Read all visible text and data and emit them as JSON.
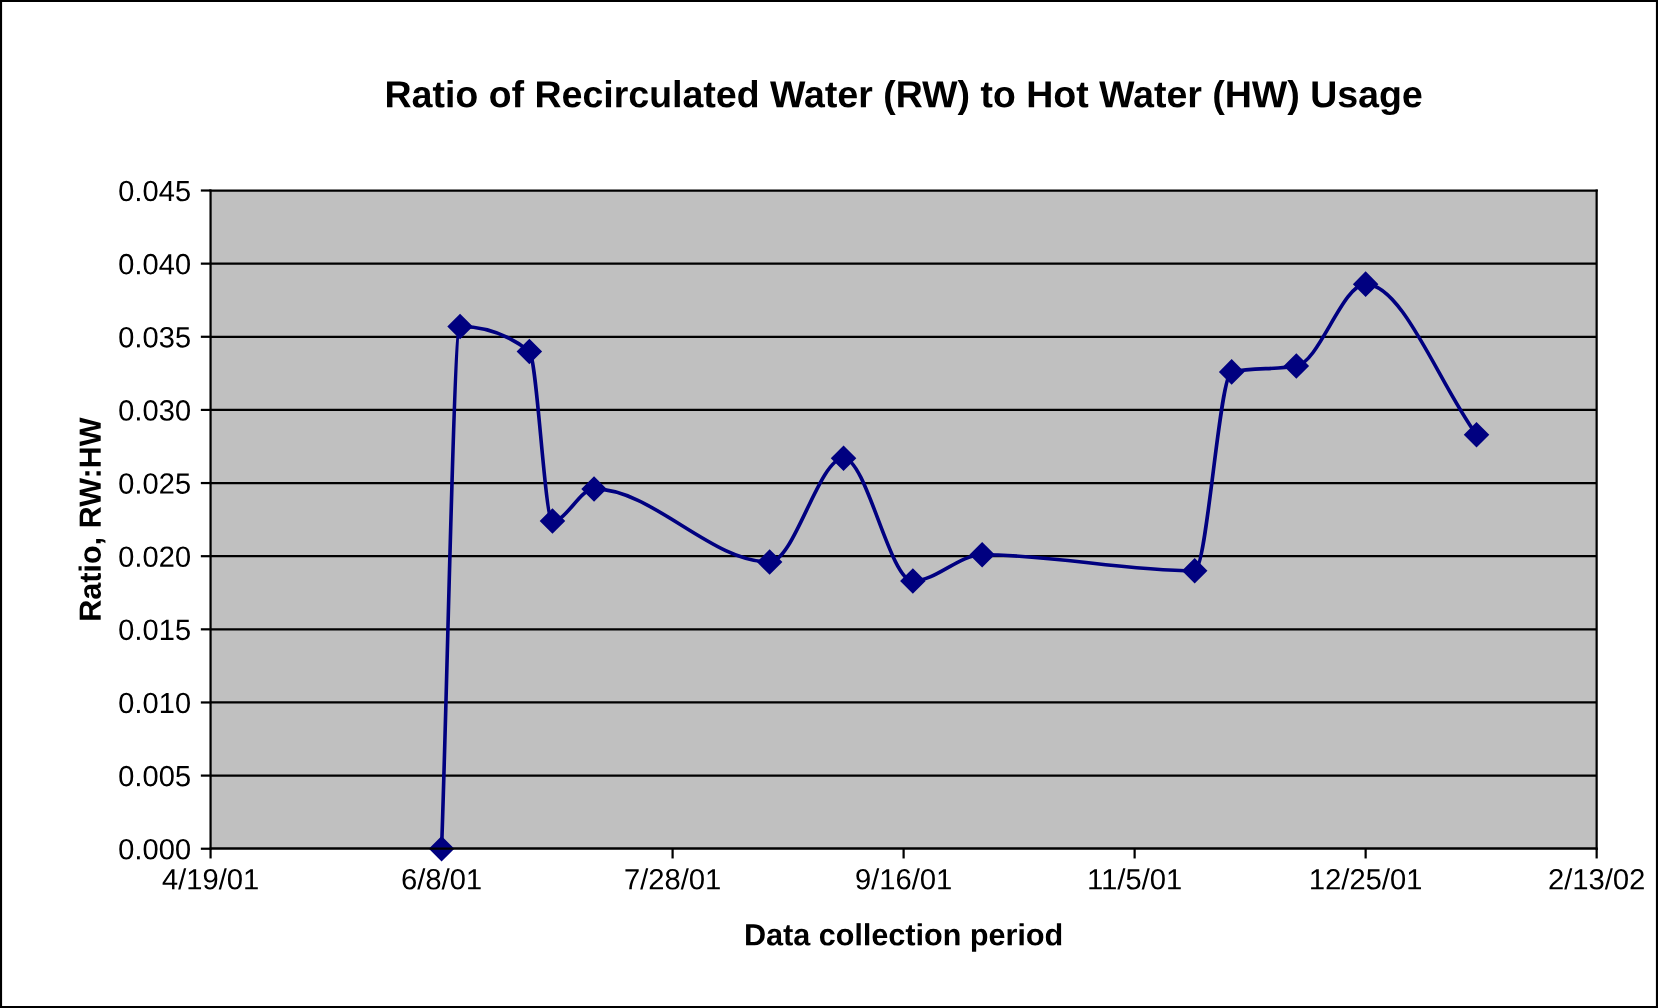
{
  "chart_data": {
    "type": "line",
    "title": "Ratio of Recirculated Water (RW) to Hot Water (HW) Usage",
    "xlabel": "Data collection period",
    "ylabel": "Ratio, RW:HW",
    "x": [
      "2001-06-08",
      "2001-06-12",
      "2001-06-27",
      "2001-07-02",
      "2001-07-11",
      "2001-08-18",
      "2001-09-03",
      "2001-09-18",
      "2001-10-03",
      "2001-11-18",
      "2001-11-26",
      "2001-12-10",
      "2001-12-25",
      "2002-01-18"
    ],
    "series": [
      {
        "color": "#000080",
        "values": [
          0.0,
          0.0357,
          0.034,
          0.0224,
          0.0246,
          0.0196,
          0.0267,
          0.0183,
          0.0201,
          0.019,
          0.0326,
          0.033,
          0.0386,
          0.0283
        ]
      }
    ],
    "xlim": [
      "2001-04-19",
      "2002-02-13"
    ],
    "xticks": [
      {
        "value": "2001-04-19",
        "label": "4/19/01"
      },
      {
        "value": "2001-06-08",
        "label": "6/8/01"
      },
      {
        "value": "2001-07-28",
        "label": "7/28/01"
      },
      {
        "value": "2001-09-16",
        "label": "9/16/01"
      },
      {
        "value": "2001-11-05",
        "label": "11/5/01"
      },
      {
        "value": "2001-12-25",
        "label": "12/25/01"
      },
      {
        "value": "2002-02-13",
        "label": "2/13/02"
      }
    ],
    "ylim": [
      0,
      0.045
    ],
    "yticks": [
      {
        "value": 0,
        "label": "0.000"
      },
      {
        "value": 0.005,
        "label": "0.005"
      },
      {
        "value": 0.01,
        "label": "0.010"
      },
      {
        "value": 0.015,
        "label": "0.015"
      },
      {
        "value": 0.02,
        "label": "0.020"
      },
      {
        "value": 0.025,
        "label": "0.025"
      },
      {
        "value": 0.03,
        "label": "0.030"
      },
      {
        "value": 0.035,
        "label": "0.035"
      },
      {
        "value": 0.04,
        "label": "0.040"
      },
      {
        "value": 0.045,
        "label": "0.045"
      }
    ],
    "grid": "y",
    "marker": "diamond",
    "line_style": "solid"
  }
}
